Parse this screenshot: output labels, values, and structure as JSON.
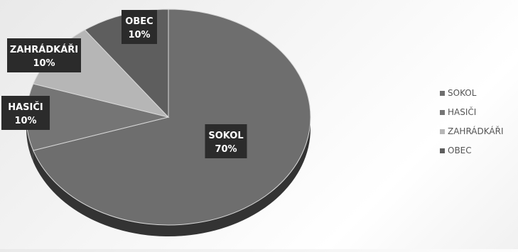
{
  "chart_data": {
    "type": "pie",
    "style": "3d",
    "legend_position": "right",
    "slices": [
      {
        "category": "SOKOL",
        "value": 70,
        "label": "70%",
        "color": "#6e6e6e",
        "side_color": "#333333"
      },
      {
        "category": "HASIČI",
        "value": 10,
        "label": "10%",
        "color": "#757575",
        "side_color": "#3c3c3c"
      },
      {
        "category": "ZAHRÁDKÁŘI",
        "value": 10,
        "label": "10%",
        "color": "#b6b6b6",
        "side_color": "#888888"
      },
      {
        "category": "OBEC",
        "value": 10,
        "label": "10%",
        "color": "#5e5e5e",
        "side_color": "#2f2f2f"
      }
    ],
    "label_box_color": "#2b2b2b"
  }
}
